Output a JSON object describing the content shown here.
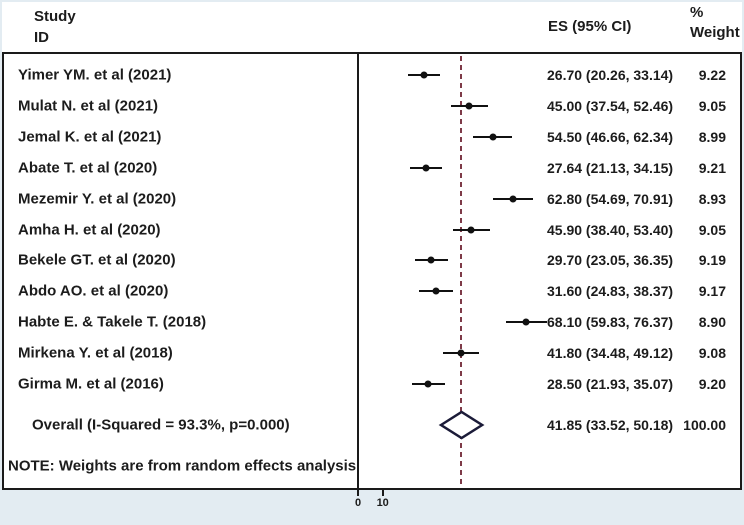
{
  "header": {
    "study_line1": "Study",
    "study_line2": "ID",
    "es_header": "ES (95% CI)",
    "weight_line1": "%",
    "weight_line2": "Weight"
  },
  "chart_data": {
    "type": "forest",
    "title": "",
    "xlabel": "",
    "x_axis": {
      "ticks": [
        0,
        10
      ],
      "null_line": 0
    },
    "overall_reference_line": 41.85,
    "studies": [
      {
        "label": "Yimer YM. et al (2021)",
        "es": 26.7,
        "lo": 20.26,
        "hi": 33.14,
        "es_text": "26.70 (20.26, 33.14)",
        "weight": "9.22"
      },
      {
        "label": "Mulat N. et al (2021)",
        "es": 45.0,
        "lo": 37.54,
        "hi": 52.46,
        "es_text": "45.00 (37.54, 52.46)",
        "weight": "9.05"
      },
      {
        "label": "Jemal K. et al (2021)",
        "es": 54.5,
        "lo": 46.66,
        "hi": 62.34,
        "es_text": "54.50 (46.66, 62.34)",
        "weight": "8.99"
      },
      {
        "label": "Abate T. et al (2020)",
        "es": 27.64,
        "lo": 21.13,
        "hi": 34.15,
        "es_text": "27.64 (21.13, 34.15)",
        "weight": "9.21"
      },
      {
        "label": "Mezemir Y. et al (2020)",
        "es": 62.8,
        "lo": 54.69,
        "hi": 70.91,
        "es_text": "62.80 (54.69, 70.91)",
        "weight": "8.93"
      },
      {
        "label": "Amha H. et al (2020)",
        "es": 45.9,
        "lo": 38.4,
        "hi": 53.4,
        "es_text": "45.90 (38.40, 53.40)",
        "weight": "9.05"
      },
      {
        "label": "Bekele GT. et al (2020)",
        "es": 29.7,
        "lo": 23.05,
        "hi": 36.35,
        "es_text": "29.70 (23.05, 36.35)",
        "weight": "9.19"
      },
      {
        "label": "Abdo AO. et al (2020)",
        "es": 31.6,
        "lo": 24.83,
        "hi": 38.37,
        "es_text": "31.60 (24.83, 38.37)",
        "weight": "9.17"
      },
      {
        "label": "Habte E. & Takele T. (2018)",
        "es": 68.1,
        "lo": 59.83,
        "hi": 76.37,
        "es_text": "68.10 (59.83, 76.37)",
        "weight": "8.90"
      },
      {
        "label": "Mirkena Y. et al (2018)",
        "es": 41.8,
        "lo": 34.48,
        "hi": 49.12,
        "es_text": "41.80 (34.48, 49.12)",
        "weight": "9.08"
      },
      {
        "label": "Girma M. et al (2016)",
        "es": 28.5,
        "lo": 21.93,
        "hi": 35.07,
        "es_text": "28.50 (21.93, 35.07)",
        "weight": "9.20"
      }
    ],
    "overall": {
      "label": "Overall (I-Squared = 93.3%, p=0.000)",
      "es": 41.85,
      "lo": 33.52,
      "hi": 50.18,
      "es_text": "41.85 (33.52, 50.18)",
      "weight": "100.00"
    },
    "note": "NOTE: Weights are from random effects analysis"
  },
  "colors": {
    "overall_dashed_line": "#7e3a48",
    "diamond_outline": "#1b1b38",
    "axis_line": "#1a1a1a",
    "marker": "#111111",
    "outer_background": "#e3ecf2"
  }
}
